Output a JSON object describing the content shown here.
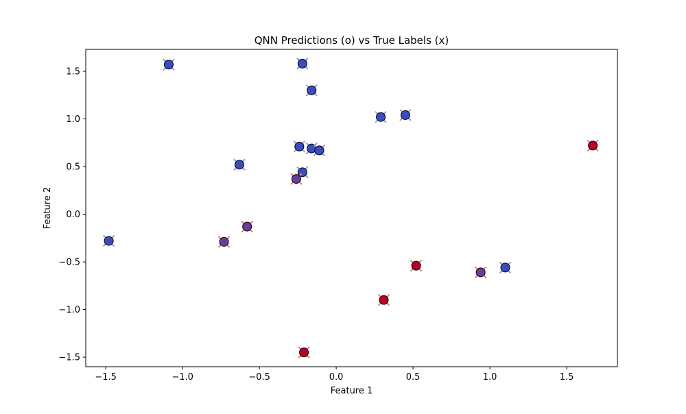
{
  "chart_data": {
    "type": "scatter",
    "title": "QNN Predictions (o) vs True Labels (x)",
    "xlabel": "Feature 1",
    "ylabel": "Feature 2",
    "xlim": [
      -1.63,
      1.83
    ],
    "ylim": [
      -1.6,
      1.73
    ],
    "xticks": [
      -1.5,
      -1.0,
      -0.5,
      0.0,
      0.5,
      1.0,
      1.5
    ],
    "xtick_labels": [
      "−1.5",
      "−1.0",
      "−0.5",
      "0.0",
      "0.5",
      "1.0",
      "1.5"
    ],
    "yticks": [
      -1.5,
      -1.0,
      -0.5,
      0.0,
      0.5,
      1.0,
      1.5
    ],
    "ytick_labels": [
      "−1.5",
      "−1.0",
      "−0.5",
      "0.0",
      "0.5",
      "1.0",
      "1.5"
    ],
    "grid": false,
    "legend": "none",
    "colors": {
      "class_0": "#3b4cc0",
      "class_1": "#b40426",
      "mixed": "#6a3d9a",
      "true_label_0": "#8da0cb",
      "true_label_1": "#e08080"
    },
    "points": [
      {
        "x": -1.09,
        "y": 1.57,
        "pred": 0,
        "true": 0
      },
      {
        "x": -0.22,
        "y": 1.58,
        "pred": 0,
        "true": 0
      },
      {
        "x": -0.16,
        "y": 1.3,
        "pred": 0,
        "true": 0
      },
      {
        "x": 0.29,
        "y": 1.02,
        "pred": 0,
        "true": 0
      },
      {
        "x": 0.45,
        "y": 1.04,
        "pred": 0,
        "true": 0
      },
      {
        "x": -0.24,
        "y": 0.71,
        "pred": 0,
        "true": 0
      },
      {
        "x": -0.16,
        "y": 0.69,
        "pred": 0,
        "true": 0
      },
      {
        "x": -0.11,
        "y": 0.67,
        "pred": 0,
        "true": 0
      },
      {
        "x": 1.67,
        "y": 0.72,
        "pred": 1,
        "true": 1
      },
      {
        "x": -0.63,
        "y": 0.52,
        "pred": 0,
        "true": 0
      },
      {
        "x": -0.22,
        "y": 0.44,
        "pred": 0,
        "true": 0
      },
      {
        "x": -0.26,
        "y": 0.37,
        "pred": 0.5,
        "true": 1
      },
      {
        "x": -0.58,
        "y": -0.13,
        "pred": 0.5,
        "true": 1
      },
      {
        "x": -1.48,
        "y": -0.28,
        "pred": 0,
        "true": 0
      },
      {
        "x": -0.73,
        "y": -0.29,
        "pred": 0.5,
        "true": 1
      },
      {
        "x": 0.52,
        "y": -0.54,
        "pred": 1,
        "true": 1
      },
      {
        "x": 0.94,
        "y": -0.61,
        "pred": 0.5,
        "true": 1
      },
      {
        "x": 1.1,
        "y": -0.56,
        "pred": 0,
        "true": 0
      },
      {
        "x": 0.31,
        "y": -0.9,
        "pred": 1,
        "true": 1
      },
      {
        "x": -0.21,
        "y": -1.45,
        "pred": 1,
        "true": 1
      }
    ]
  }
}
